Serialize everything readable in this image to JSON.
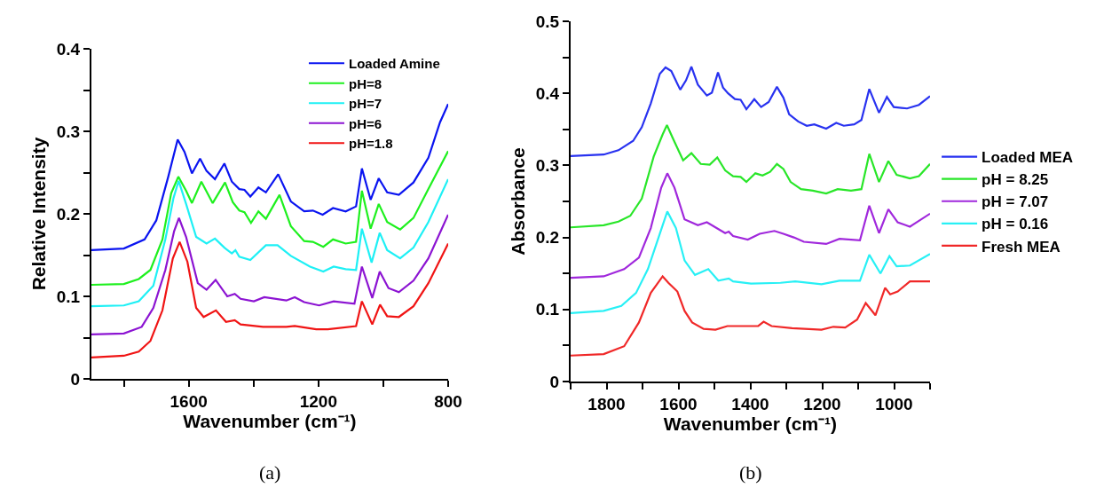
{
  "chart_data": [
    {
      "type": "line",
      "xlabel": "Wavenumber (cm⁻¹)",
      "ylabel": "Relative Intensity",
      "annotations": [
        "(a)"
      ],
      "xlim": [
        1900,
        800
      ],
      "ylim": [
        0,
        0.4
      ],
      "xticks": [
        {
          "value": 1800,
          "label": null
        },
        1600,
        {
          "value": 1400,
          "label": null
        },
        1200,
        {
          "value": 1000,
          "label": null
        },
        800
      ],
      "yticks": [
        0,
        {
          "value": 0.05,
          "label": null
        },
        0.1,
        {
          "value": 0.15,
          "label": null
        },
        0.2,
        {
          "value": 0.25,
          "label": null
        },
        0.3,
        {
          "value": 0.35,
          "label": null
        },
        0.4
      ],
      "legend": "top right",
      "marker": "none",
      "line_style": "solid",
      "series": [
        {
          "name": "Loaded Amine",
          "color": "#0a14f0",
          "x": [
            1900,
            1800,
            1736,
            1700,
            1663,
            1634,
            1613,
            1590,
            1565,
            1545,
            1519,
            1490,
            1467,
            1444,
            1428,
            1410,
            1385,
            1362,
            1324,
            1285,
            1244,
            1217,
            1187,
            1155,
            1116,
            1084,
            1066,
            1039,
            1014,
            988,
            952,
            907,
            861,
            825,
            800
          ],
          "values": [
            0.156,
            0.158,
            0.169,
            0.192,
            0.245,
            0.29,
            0.275,
            0.249,
            0.267,
            0.252,
            0.242,
            0.261,
            0.239,
            0.23,
            0.229,
            0.221,
            0.232,
            0.226,
            0.248,
            0.215,
            0.203,
            0.204,
            0.199,
            0.207,
            0.203,
            0.209,
            0.255,
            0.217,
            0.243,
            0.226,
            0.223,
            0.238,
            0.268,
            0.311,
            0.333
          ]
        },
        {
          "name": "pH=8",
          "color": "#1ef01e",
          "x": [
            1900,
            1800,
            1754,
            1718,
            1681,
            1654,
            1632,
            1608,
            1590,
            1561,
            1526,
            1488,
            1464,
            1444,
            1428,
            1408,
            1385,
            1362,
            1320,
            1285,
            1244,
            1217,
            1185,
            1155,
            1116,
            1084,
            1066,
            1039,
            1014,
            988,
            948,
            907,
            861,
            800
          ],
          "values": [
            0.114,
            0.115,
            0.121,
            0.132,
            0.169,
            0.225,
            0.245,
            0.228,
            0.213,
            0.239,
            0.213,
            0.238,
            0.214,
            0.204,
            0.202,
            0.189,
            0.203,
            0.194,
            0.223,
            0.185,
            0.167,
            0.166,
            0.16,
            0.169,
            0.164,
            0.166,
            0.228,
            0.182,
            0.212,
            0.19,
            0.181,
            0.195,
            0.23,
            0.276
          ]
        },
        {
          "name": "pH=7",
          "color": "#1ef0f5",
          "x": [
            1900,
            1800,
            1754,
            1709,
            1672,
            1647,
            1631,
            1608,
            1577,
            1545,
            1519,
            1490,
            1467,
            1456,
            1444,
            1410,
            1362,
            1326,
            1285,
            1226,
            1185,
            1153,
            1116,
            1084,
            1066,
            1036,
            1011,
            988,
            948,
            907,
            861,
            800
          ],
          "values": [
            0.088,
            0.089,
            0.094,
            0.113,
            0.169,
            0.219,
            0.24,
            0.212,
            0.172,
            0.164,
            0.17,
            0.159,
            0.152,
            0.156,
            0.148,
            0.144,
            0.162,
            0.162,
            0.149,
            0.136,
            0.13,
            0.136,
            0.133,
            0.132,
            0.182,
            0.141,
            0.177,
            0.156,
            0.146,
            0.159,
            0.19,
            0.242
          ]
        },
        {
          "name": "pH=6",
          "color": "#8c14d2",
          "x": [
            1900,
            1800,
            1745,
            1709,
            1672,
            1645,
            1630,
            1608,
            1572,
            1545,
            1517,
            1481,
            1458,
            1440,
            1399,
            1367,
            1299,
            1273,
            1244,
            1198,
            1153,
            1089,
            1066,
            1034,
            1011,
            984,
            952,
            907,
            861,
            800
          ],
          "values": [
            0.054,
            0.055,
            0.063,
            0.086,
            0.132,
            0.179,
            0.195,
            0.172,
            0.116,
            0.108,
            0.12,
            0.1,
            0.103,
            0.097,
            0.094,
            0.099,
            0.095,
            0.099,
            0.093,
            0.089,
            0.094,
            0.091,
            0.136,
            0.098,
            0.13,
            0.11,
            0.105,
            0.119,
            0.146,
            0.199
          ]
        },
        {
          "name": "pH=1.8",
          "color": "#f01414",
          "x": [
            1900,
            1800,
            1754,
            1718,
            1681,
            1649,
            1628,
            1604,
            1577,
            1554,
            1516,
            1485,
            1458,
            1440,
            1371,
            1299,
            1273,
            1207,
            1171,
            1084,
            1066,
            1034,
            1010,
            988,
            952,
            907,
            861,
            800
          ],
          "values": [
            0.026,
            0.028,
            0.033,
            0.046,
            0.083,
            0.146,
            0.166,
            0.142,
            0.086,
            0.075,
            0.083,
            0.069,
            0.071,
            0.066,
            0.063,
            0.063,
            0.064,
            0.06,
            0.06,
            0.064,
            0.094,
            0.066,
            0.09,
            0.076,
            0.075,
            0.088,
            0.116,
            0.164
          ]
        }
      ]
    },
    {
      "type": "line",
      "xlabel": "Wavenumber (cm⁻¹)",
      "ylabel": "Absorbance",
      "annotations": [
        "(b)"
      ],
      "xlim": [
        1900,
        900
      ],
      "ylim": [
        0,
        0.5
      ],
      "xticks": [
        {
          "value": 1900,
          "label": null
        },
        1800,
        {
          "value": 1700,
          "label": null
        },
        1600,
        {
          "value": 1500,
          "label": null
        },
        1400,
        {
          "value": 1300,
          "label": null
        },
        1200,
        {
          "value": 1100,
          "label": null
        },
        1000,
        {
          "value": 900,
          "label": null
        }
      ],
      "yticks": [
        0,
        {
          "value": 0.05,
          "label": null
        },
        0.1,
        {
          "value": 0.15,
          "label": null
        },
        0.2,
        {
          "value": 0.25,
          "label": null
        },
        0.3,
        {
          "value": 0.35,
          "label": null
        },
        0.4,
        {
          "value": 0.45,
          "label": null
        },
        0.5
      ],
      "legend": "right",
      "marker": "none",
      "line_style": "solid",
      "series": [
        {
          "name": "Loaded MEA",
          "color": "#2832f0",
          "x": [
            1900,
            1808,
            1767,
            1726,
            1702,
            1677,
            1652,
            1636,
            1620,
            1595,
            1579,
            1564,
            1546,
            1521,
            1507,
            1490,
            1476,
            1462,
            1443,
            1427,
            1411,
            1389,
            1370,
            1349,
            1326,
            1308,
            1292,
            1267,
            1243,
            1222,
            1189,
            1161,
            1140,
            1111,
            1091,
            1069,
            1042,
            1020,
            1001,
            964,
            931,
            900
          ],
          "values": [
            0.313,
            0.315,
            0.321,
            0.334,
            0.353,
            0.386,
            0.427,
            0.436,
            0.431,
            0.405,
            0.418,
            0.437,
            0.412,
            0.397,
            0.401,
            0.429,
            0.408,
            0.4,
            0.392,
            0.391,
            0.378,
            0.392,
            0.381,
            0.388,
            0.409,
            0.394,
            0.371,
            0.361,
            0.355,
            0.357,
            0.351,
            0.359,
            0.355,
            0.357,
            0.363,
            0.406,
            0.373,
            0.395,
            0.381,
            0.379,
            0.384,
            0.396
          ]
        },
        {
          "name": "pH = 8.25",
          "color": "#28e628",
          "x": [
            1900,
            1808,
            1767,
            1734,
            1702,
            1669,
            1644,
            1632,
            1616,
            1587,
            1564,
            1538,
            1513,
            1492,
            1470,
            1448,
            1427,
            1411,
            1386,
            1366,
            1345,
            1326,
            1308,
            1288,
            1259,
            1226,
            1189,
            1157,
            1120,
            1091,
            1069,
            1042,
            1016,
            993,
            956,
            931,
            900
          ],
          "values": [
            0.214,
            0.217,
            0.222,
            0.23,
            0.254,
            0.312,
            0.343,
            0.356,
            0.338,
            0.307,
            0.317,
            0.302,
            0.301,
            0.311,
            0.293,
            0.285,
            0.284,
            0.277,
            0.289,
            0.286,
            0.291,
            0.302,
            0.295,
            0.277,
            0.267,
            0.265,
            0.261,
            0.267,
            0.265,
            0.267,
            0.316,
            0.277,
            0.306,
            0.287,
            0.282,
            0.285,
            0.302
          ]
        },
        {
          "name": "pH = 7.07",
          "color": "#a028dc",
          "x": [
            1900,
            1808,
            1751,
            1710,
            1677,
            1648,
            1631,
            1611,
            1583,
            1546,
            1521,
            1497,
            1470,
            1460,
            1448,
            1407,
            1374,
            1333,
            1308,
            1279,
            1251,
            1189,
            1152,
            1095,
            1069,
            1042,
            1016,
            990,
            956,
            900
          ],
          "values": [
            0.144,
            0.146,
            0.156,
            0.172,
            0.213,
            0.269,
            0.289,
            0.269,
            0.225,
            0.217,
            0.221,
            0.214,
            0.206,
            0.208,
            0.202,
            0.197,
            0.205,
            0.209,
            0.205,
            0.2,
            0.194,
            0.191,
            0.198,
            0.196,
            0.244,
            0.206,
            0.239,
            0.221,
            0.215,
            0.233
          ]
        },
        {
          "name": "pH = 0.16",
          "color": "#28f0f5",
          "x": [
            1900,
            1808,
            1759,
            1718,
            1685,
            1652,
            1631,
            1607,
            1583,
            1554,
            1517,
            1489,
            1460,
            1448,
            1398,
            1316,
            1275,
            1202,
            1152,
            1095,
            1069,
            1038,
            1013,
            993,
            956,
            900
          ],
          "values": [
            0.095,
            0.098,
            0.105,
            0.123,
            0.156,
            0.205,
            0.236,
            0.213,
            0.168,
            0.148,
            0.156,
            0.14,
            0.143,
            0.139,
            0.136,
            0.137,
            0.139,
            0.135,
            0.14,
            0.14,
            0.176,
            0.15,
            0.174,
            0.16,
            0.161,
            0.177
          ]
        },
        {
          "name": "Fresh MEA",
          "color": "#f02828",
          "x": [
            1900,
            1808,
            1751,
            1710,
            1677,
            1644,
            1628,
            1603,
            1583,
            1562,
            1530,
            1497,
            1464,
            1415,
            1378,
            1363,
            1341,
            1284,
            1202,
            1169,
            1136,
            1103,
            1079,
            1052,
            1025,
            1011,
            990,
            956,
            900
          ],
          "values": [
            0.036,
            0.038,
            0.049,
            0.082,
            0.123,
            0.146,
            0.137,
            0.125,
            0.098,
            0.082,
            0.073,
            0.072,
            0.077,
            0.077,
            0.077,
            0.083,
            0.077,
            0.074,
            0.072,
            0.076,
            0.075,
            0.086,
            0.109,
            0.092,
            0.13,
            0.121,
            0.125,
            0.139,
            0.139
          ]
        }
      ]
    }
  ]
}
